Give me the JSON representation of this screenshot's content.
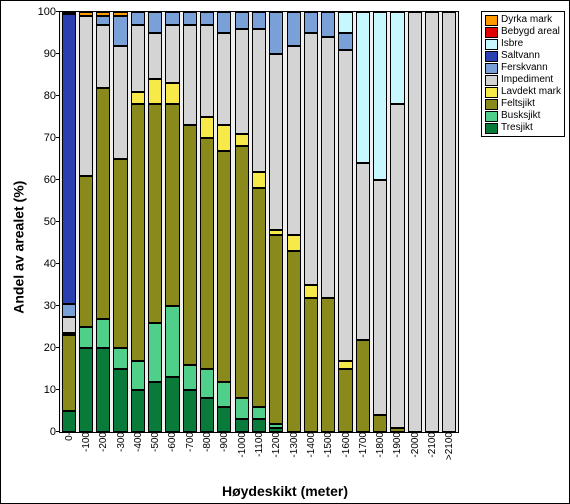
{
  "chart": {
    "type": "stacked-bar",
    "xlabel": "Høydeskikt (meter)",
    "ylabel": "Andel av arealet (%)",
    "ylim": [
      0,
      100
    ],
    "ytick_step": 10,
    "label_fontsize": 14,
    "tick_fontsize": 10,
    "background_color": "#f0f0f0",
    "categories": [
      "0-",
      "-100",
      "-200",
      "-300",
      "-400",
      "-500",
      "-600",
      "-700",
      "-800",
      "-900",
      "-1000",
      "-1100",
      "-1200",
      "-1300",
      "-1400",
      "-1500",
      "-1600",
      "-1700",
      "-1800",
      "-1900",
      "-2000",
      "-2100",
      ">2100"
    ],
    "series_order": [
      "Tresjikt",
      "Busksjikt",
      "Feltsjikt",
      "Lavdekt mark",
      "Impediment",
      "Ferskvann",
      "Saltvann",
      "Isbre",
      "Bebygd areal",
      "Dyrka mark"
    ],
    "colors": {
      "Dyrka mark": "#ff9900",
      "Bebygd areal": "#e00000",
      "Isbre": "#c8f8ff",
      "Saltvann": "#2a3fb0",
      "Ferskvann": "#7aa0d8",
      "Impediment": "#d4d4d4",
      "Lavdekt mark": "#f7e94a",
      "Feltsjikt": "#8a8a1c",
      "Busksjikt": "#4fcf8a",
      "Tresjikt": "#0a7a3a"
    },
    "legend_order": [
      "Dyrka mark",
      "Bebygd areal",
      "Isbre",
      "Saltvann",
      "Ferskvann",
      "Impediment",
      "Lavdekt mark",
      "Feltsjikt",
      "Busksjikt",
      "Tresjikt"
    ],
    "data": [
      {
        "Tresjikt": 5,
        "Busksjikt": 0,
        "Feltsjikt": 18,
        "Lavdekt mark": 0.5,
        "Impediment": 4,
        "Ferskvann": 3,
        "Saltvann": 69,
        "Isbre": 0,
        "Bebygd areal": 0.5,
        "Dyrka mark": 0
      },
      {
        "Tresjikt": 20,
        "Busksjikt": 5,
        "Feltsjikt": 36,
        "Lavdekt mark": 0,
        "Impediment": 38,
        "Ferskvann": 0,
        "Saltvann": 0,
        "Isbre": 0,
        "Bebygd areal": 0,
        "Dyrka mark": 1
      },
      {
        "Tresjikt": 20,
        "Busksjikt": 7,
        "Feltsjikt": 55,
        "Lavdekt mark": 0,
        "Impediment": 15,
        "Ferskvann": 2,
        "Saltvann": 0,
        "Isbre": 0,
        "Bebygd areal": 0,
        "Dyrka mark": 1
      },
      {
        "Tresjikt": 15,
        "Busksjikt": 5,
        "Feltsjikt": 45,
        "Lavdekt mark": 0,
        "Impediment": 27,
        "Ferskvann": 7,
        "Saltvann": 0,
        "Isbre": 0,
        "Bebygd areal": 0,
        "Dyrka mark": 1
      },
      {
        "Tresjikt": 10,
        "Busksjikt": 7,
        "Feltsjikt": 61,
        "Lavdekt mark": 3,
        "Impediment": 16,
        "Ferskvann": 3,
        "Saltvann": 0,
        "Isbre": 0,
        "Bebygd areal": 0,
        "Dyrka mark": 0
      },
      {
        "Tresjikt": 12,
        "Busksjikt": 14,
        "Feltsjikt": 52,
        "Lavdekt mark": 6,
        "Impediment": 11,
        "Ferskvann": 5,
        "Saltvann": 0,
        "Isbre": 0,
        "Bebygd areal": 0,
        "Dyrka mark": 0
      },
      {
        "Tresjikt": 13,
        "Busksjikt": 17,
        "Feltsjikt": 48,
        "Lavdekt mark": 5,
        "Impediment": 14,
        "Ferskvann": 3,
        "Saltvann": 0,
        "Isbre": 0,
        "Bebygd areal": 0,
        "Dyrka mark": 0
      },
      {
        "Tresjikt": 10,
        "Busksjikt": 6,
        "Feltsjikt": 57,
        "Lavdekt mark": 0,
        "Impediment": 24,
        "Ferskvann": 3,
        "Saltvann": 0,
        "Isbre": 0,
        "Bebygd areal": 0,
        "Dyrka mark": 0
      },
      {
        "Tresjikt": 8,
        "Busksjikt": 7,
        "Feltsjikt": 55,
        "Lavdekt mark": 5,
        "Impediment": 22,
        "Ferskvann": 3,
        "Saltvann": 0,
        "Isbre": 0,
        "Bebygd areal": 0,
        "Dyrka mark": 0
      },
      {
        "Tresjikt": 6,
        "Busksjikt": 6,
        "Feltsjikt": 55,
        "Lavdekt mark": 6,
        "Impediment": 22,
        "Ferskvann": 5,
        "Saltvann": 0,
        "Isbre": 0,
        "Bebygd areal": 0,
        "Dyrka mark": 0
      },
      {
        "Tresjikt": 3,
        "Busksjikt": 5,
        "Feltsjikt": 60,
        "Lavdekt mark": 3,
        "Impediment": 25,
        "Ferskvann": 4,
        "Saltvann": 0,
        "Isbre": 0,
        "Bebygd areal": 0,
        "Dyrka mark": 0
      },
      {
        "Tresjikt": 3,
        "Busksjikt": 3,
        "Feltsjikt": 52,
        "Lavdekt mark": 4,
        "Impediment": 34,
        "Ferskvann": 4,
        "Saltvann": 0,
        "Isbre": 0,
        "Bebygd areal": 0,
        "Dyrka mark": 0
      },
      {
        "Tresjikt": 1,
        "Busksjikt": 1,
        "Feltsjikt": 45,
        "Lavdekt mark": 1,
        "Impediment": 42,
        "Ferskvann": 10,
        "Saltvann": 0,
        "Isbre": 0,
        "Bebygd areal": 0,
        "Dyrka mark": 0
      },
      {
        "Tresjikt": 0,
        "Busksjikt": 0,
        "Feltsjikt": 43,
        "Lavdekt mark": 4,
        "Impediment": 45,
        "Ferskvann": 8,
        "Saltvann": 0,
        "Isbre": 0,
        "Bebygd areal": 0,
        "Dyrka mark": 0
      },
      {
        "Tresjikt": 0,
        "Busksjikt": 0,
        "Feltsjikt": 32,
        "Lavdekt mark": 3,
        "Impediment": 60,
        "Ferskvann": 5,
        "Saltvann": 0,
        "Isbre": 0,
        "Bebygd areal": 0,
        "Dyrka mark": 0
      },
      {
        "Tresjikt": 0,
        "Busksjikt": 0,
        "Feltsjikt": 32,
        "Lavdekt mark": 0,
        "Impediment": 62,
        "Ferskvann": 6,
        "Saltvann": 0,
        "Isbre": 0,
        "Bebygd areal": 0,
        "Dyrka mark": 0
      },
      {
        "Tresjikt": 0,
        "Busksjikt": 0,
        "Feltsjikt": 15,
        "Lavdekt mark": 2,
        "Impediment": 74,
        "Ferskvann": 4,
        "Saltvann": 0,
        "Isbre": 5,
        "Bebygd areal": 0,
        "Dyrka mark": 0
      },
      {
        "Tresjikt": 0,
        "Busksjikt": 0,
        "Feltsjikt": 22,
        "Lavdekt mark": 0,
        "Impediment": 42,
        "Ferskvann": 0,
        "Saltvann": 0,
        "Isbre": 36,
        "Bebygd areal": 0,
        "Dyrka mark": 0
      },
      {
        "Tresjikt": 0,
        "Busksjikt": 0,
        "Feltsjikt": 4,
        "Lavdekt mark": 0,
        "Impediment": 56,
        "Ferskvann": 0,
        "Saltvann": 0,
        "Isbre": 40,
        "Bebygd areal": 0,
        "Dyrka mark": 0
      },
      {
        "Tresjikt": 0,
        "Busksjikt": 0,
        "Feltsjikt": 1,
        "Lavdekt mark": 0,
        "Impediment": 77,
        "Ferskvann": 0,
        "Saltvann": 0,
        "Isbre": 22,
        "Bebygd areal": 0,
        "Dyrka mark": 0
      },
      {
        "Tresjikt": 0,
        "Busksjikt": 0,
        "Feltsjikt": 0,
        "Lavdekt mark": 0,
        "Impediment": 100,
        "Ferskvann": 0,
        "Saltvann": 0,
        "Isbre": 0,
        "Bebygd areal": 0,
        "Dyrka mark": 0
      },
      {
        "Tresjikt": 0,
        "Busksjikt": 0,
        "Feltsjikt": 0,
        "Lavdekt mark": 0,
        "Impediment": 100,
        "Ferskvann": 0,
        "Saltvann": 0,
        "Isbre": 0,
        "Bebygd areal": 0,
        "Dyrka mark": 0
      },
      {
        "Tresjikt": 0,
        "Busksjikt": 0,
        "Feltsjikt": 0,
        "Lavdekt mark": 0,
        "Impediment": 100,
        "Ferskvann": 0,
        "Saltvann": 0,
        "Isbre": 0,
        "Bebygd areal": 0,
        "Dyrka mark": 0
      }
    ]
  }
}
